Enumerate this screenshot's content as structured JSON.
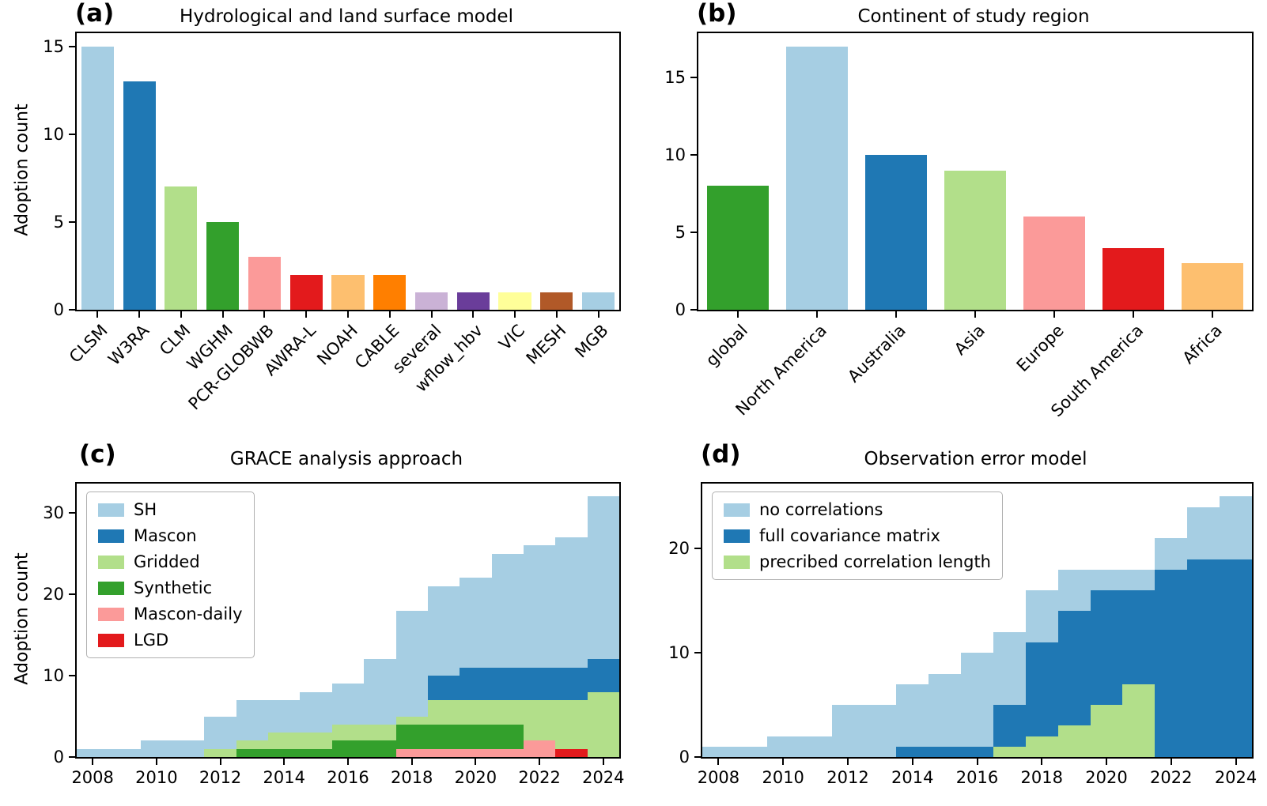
{
  "chart_data": [
    {
      "type": "bar",
      "panel_label": "(a)",
      "title": "Hydrological and land surface model",
      "ylabel": "Adoption count",
      "categories": [
        "CLSM",
        "W3RA",
        "CLM",
        "WGHM",
        "PCR-GLOBWB",
        "AWRA-L",
        "NOAH",
        "CABLE",
        "several",
        "wflow_hbv",
        "VIC",
        "MESH",
        "MGB"
      ],
      "values": [
        15,
        13,
        7,
        5,
        3,
        2,
        2,
        2,
        1,
        1,
        1,
        1,
        1
      ],
      "bar_colors": [
        "#a6cee3",
        "#1f78b4",
        "#b2df8a",
        "#33a02c",
        "#fb9a99",
        "#e31a1c",
        "#fdbf6f",
        "#ff7f00",
        "#cab2d6",
        "#6a3d9a",
        "#ffff99",
        "#b15928",
        "#a6cee3"
      ],
      "yticks": [
        0,
        5,
        10,
        15
      ],
      "ylim": [
        0,
        15.75
      ],
      "xtick_rotation": 45,
      "grid": false
    },
    {
      "type": "bar",
      "panel_label": "(b)",
      "title": "Continent of study region",
      "ylabel": "",
      "categories": [
        "global",
        "North America",
        "Australia",
        "Asia",
        "Europe",
        "South America",
        "Africa"
      ],
      "values": [
        8,
        17,
        10,
        9,
        6,
        4,
        3
      ],
      "bar_colors": [
        "#33a02c",
        "#a6cee3",
        "#1f78b4",
        "#b2df8a",
        "#fb9a99",
        "#e31a1c",
        "#fdbf6f"
      ],
      "yticks": [
        0,
        5,
        10,
        15
      ],
      "ylim": [
        0,
        17.85
      ],
      "xtick_rotation": 45,
      "grid": false
    },
    {
      "type": "stacked-bar",
      "panel_label": "(c)",
      "title": "GRACE analysis approach",
      "ylabel": "Adoption count",
      "x": [
        2008,
        2009,
        2010,
        2011,
        2012,
        2013,
        2014,
        2015,
        2016,
        2017,
        2018,
        2019,
        2020,
        2021,
        2022,
        2023,
        2024
      ],
      "xlim": [
        2007.5,
        2024.5
      ],
      "xticks": [
        2008,
        2010,
        2012,
        2014,
        2016,
        2018,
        2020,
        2022,
        2024
      ],
      "yticks": [
        0,
        10,
        20,
        30
      ],
      "ylim": [
        0,
        33.6
      ],
      "legend_position": "upper left",
      "legend": [
        "SH",
        "Mascon",
        "Gridded",
        "Synthetic",
        "Mascon-daily",
        "LGD"
      ],
      "series": [
        {
          "name": "Mascon-daily",
          "color": "#fb9a99",
          "values": [
            0,
            0,
            0,
            0,
            0,
            0,
            0,
            0,
            0,
            0,
            1,
            1,
            1,
            1,
            2,
            0,
            0
          ]
        },
        {
          "name": "LGD",
          "color": "#e31a1c",
          "values": [
            0,
            0,
            0,
            0,
            0,
            0,
            0,
            0,
            0,
            0,
            0,
            0,
            0,
            0,
            0,
            1,
            0
          ]
        },
        {
          "name": "Synthetic",
          "color": "#33a02c",
          "values": [
            0,
            0,
            0,
            0,
            0,
            1,
            1,
            1,
            2,
            2,
            3,
            3,
            3,
            3,
            0,
            0,
            0
          ]
        },
        {
          "name": "Gridded",
          "color": "#b2df8a",
          "values": [
            0,
            0,
            0,
            0,
            1,
            1,
            2,
            2,
            2,
            2,
            1,
            3,
            3,
            3,
            5,
            6,
            8
          ]
        },
        {
          "name": "Mascon",
          "color": "#1f78b4",
          "values": [
            0,
            0,
            0,
            0,
            0,
            0,
            0,
            0,
            0,
            0,
            0,
            3,
            4,
            4,
            4,
            4,
            4
          ]
        },
        {
          "name": "SH",
          "color": "#a6cee3",
          "values": [
            1,
            1,
            2,
            2,
            4,
            5,
            4,
            5,
            5,
            8,
            13,
            11,
            11,
            14,
            15,
            16,
            20
          ]
        }
      ],
      "grid": false
    },
    {
      "type": "stacked-bar",
      "panel_label": "(d)",
      "title": "Observation error model",
      "ylabel": "",
      "x": [
        2008,
        2009,
        2010,
        2011,
        2012,
        2013,
        2014,
        2015,
        2016,
        2017,
        2018,
        2019,
        2020,
        2021,
        2022,
        2023,
        2024
      ],
      "xlim": [
        2007.5,
        2024.5
      ],
      "xticks": [
        2008,
        2010,
        2012,
        2014,
        2016,
        2018,
        2020,
        2022,
        2024
      ],
      "yticks": [
        0,
        10,
        20
      ],
      "ylim": [
        0,
        26.25
      ],
      "legend_position": "upper left",
      "legend": [
        "no correlations",
        "full covariance matrix",
        "precribed correlation length"
      ],
      "series": [
        {
          "name": "precribed correlation length",
          "color": "#b2df8a",
          "values": [
            0,
            0,
            0,
            0,
            0,
            0,
            0,
            0,
            0,
            1,
            2,
            3,
            5,
            7,
            0,
            0,
            0
          ]
        },
        {
          "name": "full covariance matrix",
          "color": "#1f78b4",
          "values": [
            0,
            0,
            0,
            0,
            0,
            0,
            1,
            1,
            1,
            4,
            9,
            11,
            11,
            9,
            18,
            19,
            19
          ]
        },
        {
          "name": "no correlations",
          "color": "#a6cee3",
          "values": [
            1,
            1,
            2,
            2,
            5,
            5,
            6,
            7,
            9,
            7,
            5,
            4,
            2,
            2,
            3,
            5,
            6
          ]
        }
      ],
      "grid": false
    }
  ]
}
